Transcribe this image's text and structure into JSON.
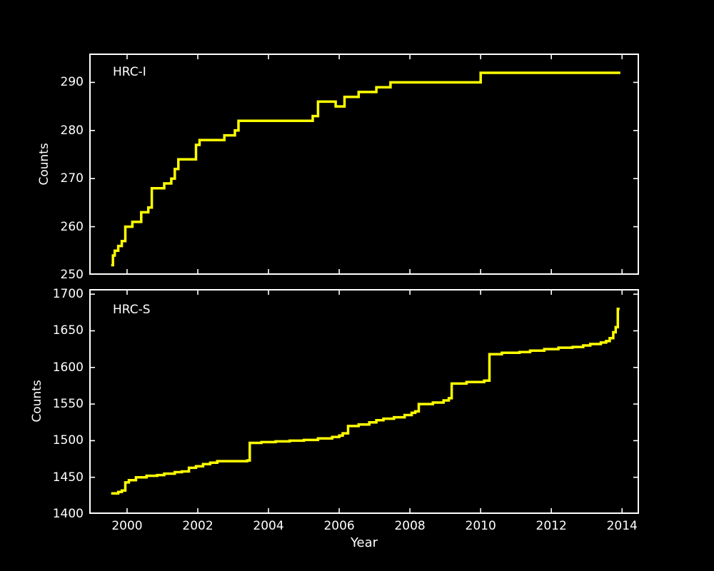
{
  "figure": {
    "background_color": "#000000",
    "axis_color": "#ffffff",
    "line_color": "#ffff00",
    "xlabel": "Year"
  },
  "chart_data": [
    {
      "type": "line",
      "style": "step",
      "title": "HRC-I",
      "ylabel": "Counts",
      "xlabel": "Year",
      "grid": false,
      "legend": "none",
      "xlim": [
        1998.93,
        2014.48
      ],
      "ylim": [
        250,
        296
      ],
      "xticks": [
        2000,
        2002,
        2004,
        2006,
        2008,
        2010,
        2012,
        2014
      ],
      "yticks": [
        250,
        260,
        270,
        280,
        290
      ],
      "show_xtick_labels": false,
      "points": [
        [
          1999.55,
          252
        ],
        [
          1999.6,
          254
        ],
        [
          1999.65,
          255
        ],
        [
          1999.75,
          256
        ],
        [
          1999.85,
          257
        ],
        [
          1999.95,
          260
        ],
        [
          2000.15,
          261
        ],
        [
          2000.4,
          263
        ],
        [
          2000.6,
          264
        ],
        [
          2000.7,
          268
        ],
        [
          2001.05,
          269
        ],
        [
          2001.25,
          270
        ],
        [
          2001.35,
          272
        ],
        [
          2001.45,
          274
        ],
        [
          2001.95,
          277
        ],
        [
          2002.05,
          278
        ],
        [
          2002.75,
          279
        ],
        [
          2003.05,
          280
        ],
        [
          2003.15,
          282
        ],
        [
          2005.25,
          283
        ],
        [
          2005.4,
          286
        ],
        [
          2005.9,
          285
        ],
        [
          2006.15,
          287
        ],
        [
          2006.55,
          288
        ],
        [
          2007.05,
          289
        ],
        [
          2007.45,
          290
        ],
        [
          2009.9,
          290
        ],
        [
          2010.0,
          292
        ],
        [
          2013.95,
          292
        ]
      ]
    },
    {
      "type": "line",
      "style": "step",
      "title": "HRC-S",
      "ylabel": "Counts",
      "xlabel": "Year",
      "grid": false,
      "legend": "none",
      "xlim": [
        1998.93,
        2014.48
      ],
      "ylim": [
        1400,
        1707
      ],
      "xticks": [
        2000,
        2002,
        2004,
        2006,
        2008,
        2010,
        2012,
        2014
      ],
      "yticks": [
        1400,
        1450,
        1500,
        1550,
        1600,
        1650,
        1700
      ],
      "show_xtick_labels": true,
      "points": [
        [
          1999.55,
          1428
        ],
        [
          1999.75,
          1430
        ],
        [
          1999.85,
          1432
        ],
        [
          1999.95,
          1443
        ],
        [
          2000.05,
          1446
        ],
        [
          2000.25,
          1450
        ],
        [
          2000.55,
          1452
        ],
        [
          2000.85,
          1453
        ],
        [
          2001.05,
          1455
        ],
        [
          2001.35,
          1457
        ],
        [
          2001.55,
          1458
        ],
        [
          2001.75,
          1463
        ],
        [
          2001.95,
          1465
        ],
        [
          2002.15,
          1468
        ],
        [
          2002.35,
          1470
        ],
        [
          2002.55,
          1472
        ],
        [
          2003.4,
          1473
        ],
        [
          2003.47,
          1497
        ],
        [
          2003.8,
          1498
        ],
        [
          2004.2,
          1499
        ],
        [
          2004.6,
          1500
        ],
        [
          2005.0,
          1501
        ],
        [
          2005.4,
          1503
        ],
        [
          2005.8,
          1505
        ],
        [
          2006.0,
          1507
        ],
        [
          2006.1,
          1510
        ],
        [
          2006.25,
          1520
        ],
        [
          2006.55,
          1522
        ],
        [
          2006.85,
          1525
        ],
        [
          2007.05,
          1528
        ],
        [
          2007.25,
          1530
        ],
        [
          2007.55,
          1532
        ],
        [
          2007.85,
          1535
        ],
        [
          2008.05,
          1538
        ],
        [
          2008.15,
          1540
        ],
        [
          2008.25,
          1550
        ],
        [
          2008.65,
          1552
        ],
        [
          2008.95,
          1555
        ],
        [
          2009.1,
          1558
        ],
        [
          2009.18,
          1578
        ],
        [
          2009.6,
          1580
        ],
        [
          2010.1,
          1582
        ],
        [
          2010.25,
          1618
        ],
        [
          2010.6,
          1620
        ],
        [
          2011.1,
          1621
        ],
        [
          2011.4,
          1623
        ],
        [
          2011.8,
          1625
        ],
        [
          2012.2,
          1627
        ],
        [
          2012.6,
          1628
        ],
        [
          2012.9,
          1630
        ],
        [
          2013.1,
          1632
        ],
        [
          2013.4,
          1634
        ],
        [
          2013.55,
          1636
        ],
        [
          2013.65,
          1640
        ],
        [
          2013.75,
          1648
        ],
        [
          2013.82,
          1655
        ],
        [
          2013.88,
          1680
        ],
        [
          2013.93,
          1680
        ]
      ]
    }
  ]
}
